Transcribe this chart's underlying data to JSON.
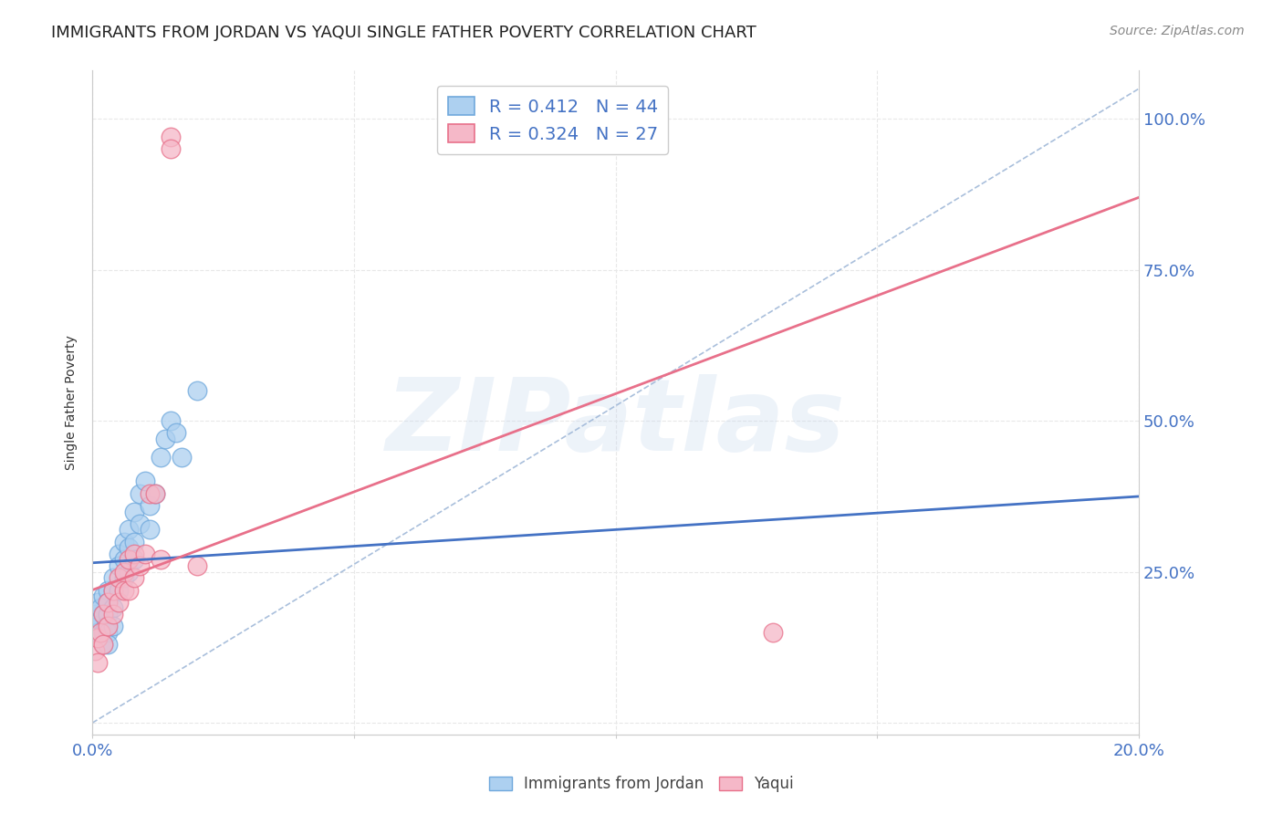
{
  "title": "IMMIGRANTS FROM JORDAN VS YAQUI SINGLE FATHER POVERTY CORRELATION CHART",
  "source": "Source: ZipAtlas.com",
  "ylabel": "Single Father Poverty",
  "xlim": [
    0.0,
    0.2
  ],
  "ylim": [
    -0.02,
    1.08
  ],
  "xticks": [
    0.0,
    0.05,
    0.1,
    0.15,
    0.2
  ],
  "xticklabels": [
    "0.0%",
    "",
    "",
    "",
    "20.0%"
  ],
  "yticks": [
    0.0,
    0.25,
    0.5,
    0.75,
    1.0
  ],
  "yticklabels": [
    "",
    "25.0%",
    "50.0%",
    "75.0%",
    "100.0%"
  ],
  "blue_R": 0.412,
  "blue_N": 44,
  "pink_R": 0.324,
  "pink_N": 27,
  "blue_color": "#ADD0F0",
  "pink_color": "#F5B8C8",
  "blue_edge_color": "#6FA8DC",
  "pink_edge_color": "#E8708A",
  "blue_line_color": "#4472C4",
  "pink_line_color": "#E8708A",
  "ref_line_color": "#A0B8D8",
  "blue_scatter_x": [
    0.0005,
    0.001,
    0.001,
    0.001,
    0.0015,
    0.0015,
    0.002,
    0.002,
    0.002,
    0.002,
    0.0025,
    0.003,
    0.003,
    0.003,
    0.003,
    0.003,
    0.004,
    0.004,
    0.004,
    0.004,
    0.005,
    0.005,
    0.005,
    0.006,
    0.006,
    0.006,
    0.007,
    0.007,
    0.007,
    0.008,
    0.008,
    0.008,
    0.009,
    0.009,
    0.01,
    0.011,
    0.011,
    0.012,
    0.013,
    0.014,
    0.015,
    0.016,
    0.017,
    0.02
  ],
  "blue_scatter_y": [
    0.18,
    0.16,
    0.2,
    0.15,
    0.17,
    0.19,
    0.21,
    0.18,
    0.15,
    0.13,
    0.16,
    0.22,
    0.2,
    0.18,
    0.15,
    0.13,
    0.24,
    0.22,
    0.19,
    0.16,
    0.28,
    0.26,
    0.22,
    0.3,
    0.27,
    0.24,
    0.32,
    0.29,
    0.25,
    0.35,
    0.3,
    0.27,
    0.38,
    0.33,
    0.4,
    0.36,
    0.32,
    0.38,
    0.44,
    0.47,
    0.5,
    0.48,
    0.44,
    0.55
  ],
  "pink_scatter_x": [
    0.0005,
    0.001,
    0.001,
    0.0015,
    0.002,
    0.002,
    0.003,
    0.003,
    0.004,
    0.004,
    0.005,
    0.005,
    0.006,
    0.006,
    0.007,
    0.007,
    0.008,
    0.008,
    0.009,
    0.01,
    0.011,
    0.012,
    0.013,
    0.015,
    0.015,
    0.02,
    0.13
  ],
  "pink_scatter_y": [
    0.12,
    0.14,
    0.1,
    0.15,
    0.18,
    0.13,
    0.2,
    0.16,
    0.22,
    0.18,
    0.24,
    0.2,
    0.25,
    0.22,
    0.27,
    0.22,
    0.28,
    0.24,
    0.26,
    0.28,
    0.38,
    0.38,
    0.27,
    0.97,
    0.95,
    0.26,
    0.15
  ],
  "blue_line_x0": 0.0,
  "blue_line_x1": 0.2,
  "blue_line_y0": 0.265,
  "blue_line_y1": 0.375,
  "pink_line_x0": 0.0,
  "pink_line_x1": 0.2,
  "pink_line_y0": 0.22,
  "pink_line_y1": 0.87,
  "watermark": "ZIPatlas",
  "background_color": "#FFFFFF",
  "grid_color": "#E8E8E8",
  "tick_label_color": "#4472C4",
  "title_fontsize": 13,
  "axis_label_fontsize": 10,
  "legend_fontsize": 14
}
